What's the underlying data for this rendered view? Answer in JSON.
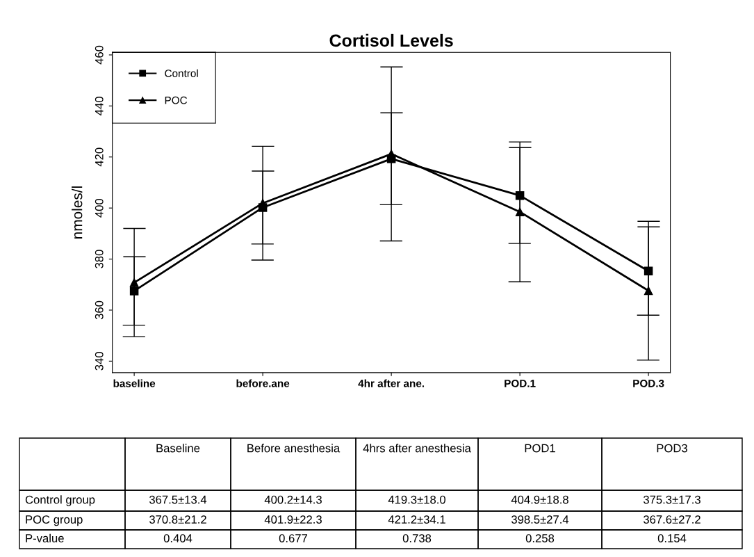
{
  "chart_data": {
    "type": "line",
    "title": "Cortisol Levels",
    "ylabel": "nmoles/l",
    "categories": [
      "baseline",
      "before.ane",
      "4hr after ane.",
      "POD.1",
      "POD.3"
    ],
    "series": [
      {
        "name": "Control",
        "color": "#000000",
        "marker": "square",
        "values": [
          367.5,
          400.2,
          419.3,
          404.9,
          375.3
        ],
        "errors": [
          13.4,
          14.3,
          18.0,
          18.8,
          17.3
        ],
        "value_labels": [
          "367.5±13.4",
          "400.2±14.3",
          "419.3±18.0",
          "404.9±18.8",
          "375.3±17.3"
        ]
      },
      {
        "name": "POC",
        "color": "#000000",
        "marker": "triangle",
        "values": [
          370.8,
          401.9,
          421.2,
          398.5,
          367.6
        ],
        "errors": [
          21.2,
          22.3,
          34.1,
          27.4,
          27.2
        ],
        "value_labels": [
          "370.8±21.2",
          "401.9±22.3",
          "421.2±34.1",
          "398.5±27.4",
          "367.6±27.2"
        ]
      }
    ],
    "ylim": [
      335.5,
      461
    ],
    "yticks": [
      340,
      360,
      380,
      400,
      420,
      440,
      460
    ],
    "grid": false,
    "legend": "top left",
    "line_style": "solid",
    "annotations": [
      "Baseline",
      "Before anesthesia",
      "4hrs after anesthesia",
      "POD1",
      "POD3",
      "Control group",
      "POC group",
      "P-value",
      "0.404",
      "0.677",
      "0.738",
      "0.258",
      "0.154"
    ]
  }
}
